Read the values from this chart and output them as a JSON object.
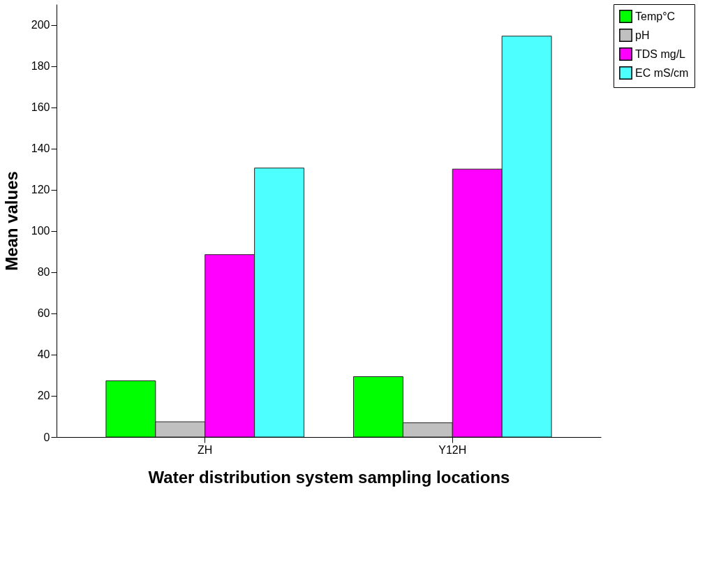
{
  "chart_data": {
    "type": "bar",
    "xlabel": "Water distribution system sampling locations",
    "ylabel": "Mean values",
    "categories": [
      "ZH",
      "Y12H"
    ],
    "series": [
      {
        "name": "Temp°C",
        "color": "#00ff00",
        "values": [
          27.3,
          29.3
        ]
      },
      {
        "name": "pH",
        "color": "#c0c0c0",
        "values": [
          7.4,
          6.9
        ]
      },
      {
        "name": "TDS mg/L",
        "color": "#ff00ff",
        "values": [
          88.5,
          130
        ]
      },
      {
        "name": "EC mS/cm",
        "color": "#4dffff",
        "values": [
          130.5,
          194.5
        ]
      }
    ],
    "ylim": [
      0,
      210
    ],
    "yticks": [
      0,
      20,
      40,
      60,
      80,
      100,
      120,
      140,
      160,
      180,
      200
    ],
    "legend": "top right",
    "grid": false
  }
}
